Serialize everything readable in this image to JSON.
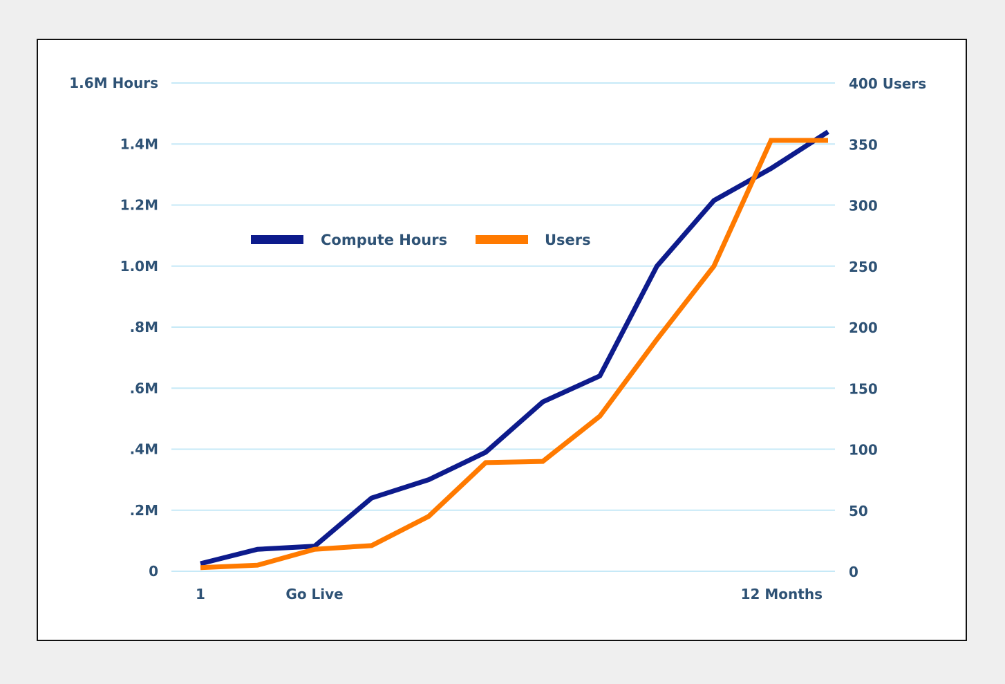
{
  "chart_data": {
    "type": "line",
    "x": [
      1,
      2,
      3,
      4,
      5,
      6,
      7,
      8,
      9,
      10,
      11,
      12
    ],
    "x_tick_labels": [
      {
        "x": 1,
        "label": "1"
      },
      {
        "x": 3,
        "label": "Go Live"
      },
      {
        "x": 12,
        "label": "12 Months"
      }
    ],
    "left_axis": {
      "ylim": [
        0,
        1600000
      ],
      "ticks": [
        {
          "value": 0,
          "label": "0"
        },
        {
          "value": 200000,
          "label": ".2M"
        },
        {
          "value": 400000,
          "label": ".4M"
        },
        {
          "value": 600000,
          "label": ".6M"
        },
        {
          "value": 800000,
          "label": ".8M"
        },
        {
          "value": 1000000,
          "label": "1.0M"
        },
        {
          "value": 1200000,
          "label": "1.2M"
        },
        {
          "value": 1400000,
          "label": "1.4M"
        },
        {
          "value": 1600000,
          "label": "1.6M Hours"
        }
      ]
    },
    "right_axis": {
      "ylim": [
        0,
        400
      ],
      "ticks": [
        {
          "value": 0,
          "label": "0"
        },
        {
          "value": 50,
          "label": "50"
        },
        {
          "value": 100,
          "label": "100"
        },
        {
          "value": 150,
          "label": "150"
        },
        {
          "value": 200,
          "label": "200"
        },
        {
          "value": 250,
          "label": "250"
        },
        {
          "value": 300,
          "label": "300"
        },
        {
          "value": 350,
          "label": "350"
        },
        {
          "value": 400,
          "label": "400 Users"
        }
      ]
    },
    "series": [
      {
        "name": "Compute Hours",
        "axis": "left",
        "color": "#0d1b8c",
        "points": [
          [
            1,
            25000
          ],
          [
            2,
            72000
          ],
          [
            3,
            82000
          ],
          [
            4,
            240000
          ],
          [
            5,
            300000
          ],
          [
            6,
            390000
          ],
          [
            7,
            555000
          ],
          [
            8,
            640000
          ],
          [
            9,
            1000000
          ],
          [
            10,
            1215000
          ],
          [
            11,
            1320000
          ],
          [
            12,
            1440000
          ]
        ]
      },
      {
        "name": "Users",
        "axis": "right",
        "color": "#ff7a00",
        "points": [
          [
            1,
            3
          ],
          [
            2,
            5
          ],
          [
            3,
            18
          ],
          [
            4,
            21
          ],
          [
            5,
            45
          ],
          [
            6,
            89
          ],
          [
            7,
            90
          ],
          [
            8,
            127
          ],
          [
            9,
            190
          ],
          [
            10,
            250
          ],
          [
            11,
            353
          ],
          [
            12,
            353
          ]
        ]
      }
    ],
    "legend": "top-left",
    "grid": true,
    "grid_color": "#c6e9f7"
  }
}
